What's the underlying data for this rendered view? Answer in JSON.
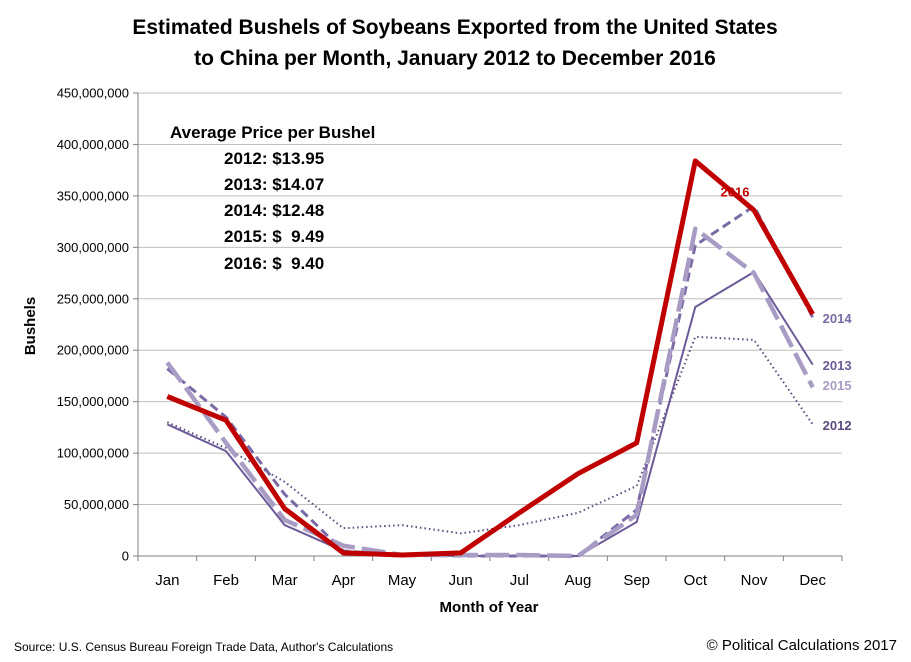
{
  "chart_data": {
    "type": "line",
    "title_line1": "Estimated Bushels of Soybeans Exported from the United States",
    "title_line2": "to China per Month, January 2012 to December 2016",
    "xlabel": "Month of Year",
    "ylabel": "Bushels",
    "ylim": [
      0,
      450000000
    ],
    "yticks": [
      "0",
      "50,000,000",
      "100,000,000",
      "150,000,000",
      "200,000,000",
      "250,000,000",
      "300,000,000",
      "350,000,000",
      "400,000,000",
      "450,000,000"
    ],
    "categories": [
      "Jan",
      "Feb",
      "Mar",
      "Apr",
      "May",
      "Jun",
      "Jul",
      "Aug",
      "Sep",
      "Oct",
      "Nov",
      "Dec"
    ],
    "series": [
      {
        "name": "2012",
        "color": "#5b4a7e",
        "style": "dotted",
        "values": [
          130000000,
          105000000,
          72000000,
          27000000,
          30000000,
          22000000,
          30000000,
          42000000,
          68000000,
          213000000,
          210000000,
          128000000
        ]
      },
      {
        "name": "2013",
        "color": "#6c5a98",
        "style": "solid",
        "values": [
          128000000,
          102000000,
          30000000,
          5000000,
          1000000,
          0,
          0,
          0,
          33000000,
          242000000,
          276000000,
          186000000
        ]
      },
      {
        "name": "2014",
        "color": "#7b6aa6",
        "style": "dashed",
        "values": [
          182000000,
          135000000,
          60000000,
          5000000,
          1000000,
          0,
          0,
          0,
          45000000,
          302000000,
          340000000,
          232000000
        ]
      },
      {
        "name": "2015",
        "color": "#a99cc4",
        "style": "longdash",
        "values": [
          188000000,
          110000000,
          35000000,
          10000000,
          1000000,
          1000000,
          1000000,
          0,
          40000000,
          318000000,
          275000000,
          164000000
        ]
      },
      {
        "name": "2016",
        "color": "#c00000",
        "style": "thick",
        "values": [
          155000000,
          132000000,
          46000000,
          3000000,
          1000000,
          3000000,
          42000000,
          80000000,
          110000000,
          384000000,
          336000000,
          235000000
        ]
      }
    ],
    "annotation": {
      "heading": "Average Price per Bushel",
      "lines": [
        "2012: $13.95",
        "2013: $14.07",
        "2014: $12.48",
        "2015: $  9.49",
        "2016: $  9.40"
      ]
    }
  },
  "footer": {
    "source": "Source: U.S. Census Bureau  Foreign Trade Data,  Author's Calculations",
    "copyright": "© Political Calculations 2017"
  }
}
